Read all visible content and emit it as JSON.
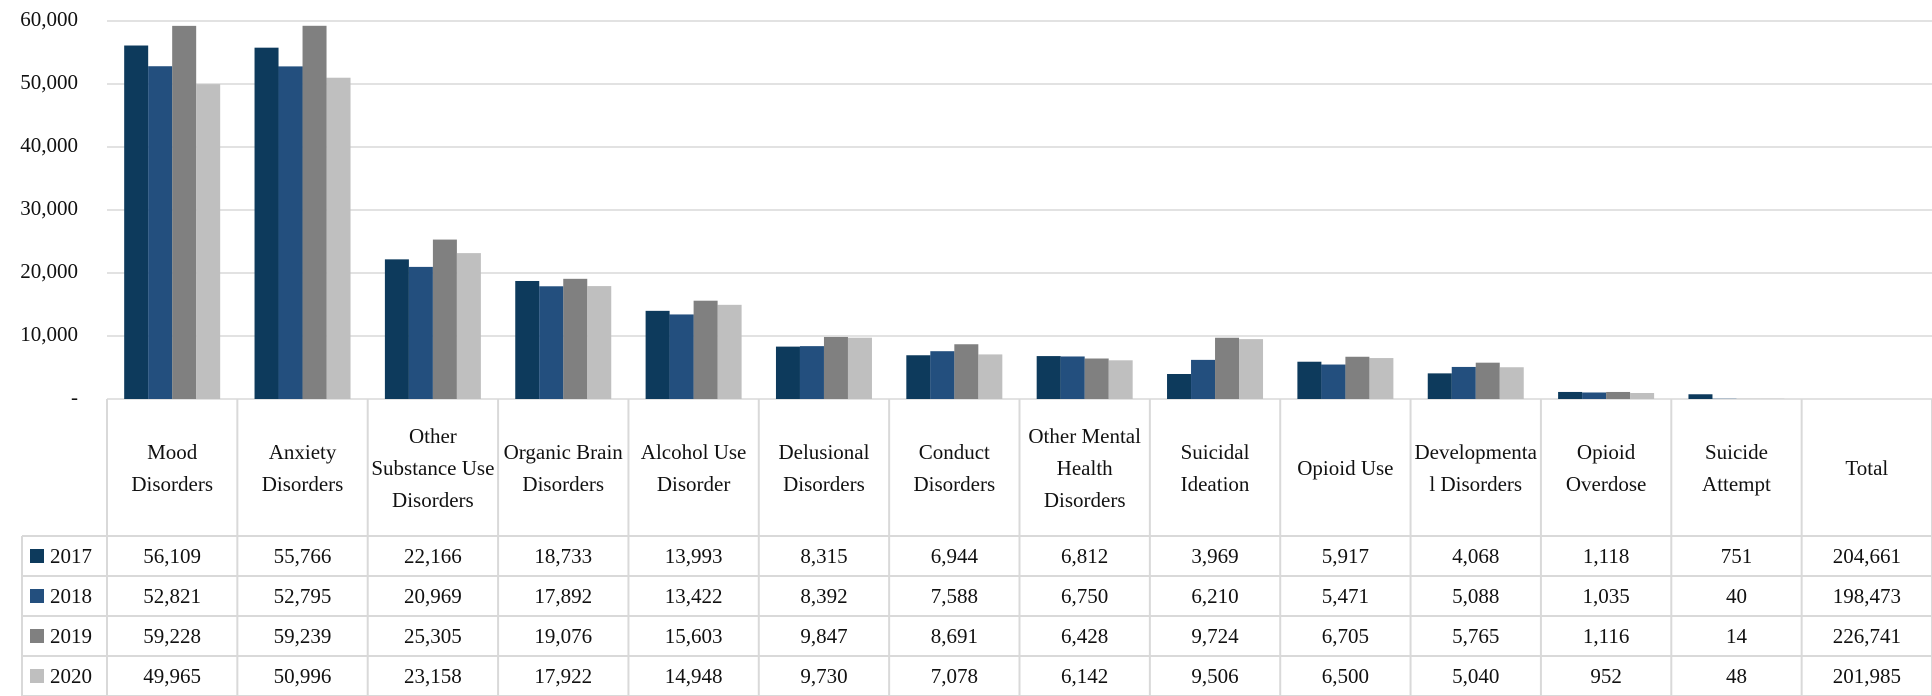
{
  "chart_data": {
    "type": "bar",
    "categories": [
      "Mood Disorders",
      "Anxiety Disorders",
      "Other Substance Use Disorders",
      "Organic Brain Disorders",
      "Alcohol Use Disorder",
      "Delusional Disorders",
      "Conduct Disorders",
      "Other Mental Health Disorders",
      "Suicidal Ideation",
      "Opioid Use",
      "Developmental Disorders",
      "Opioid Overdose",
      "Suicide Attempt",
      "Total"
    ],
    "series": [
      {
        "name": "2017",
        "color": "#0d3a5c",
        "values": [
          56109,
          55766,
          22166,
          18733,
          13993,
          8315,
          6944,
          6812,
          3969,
          5917,
          4068,
          1118,
          751,
          204661
        ],
        "value_labels": [
          "56,109",
          "55,766",
          "22,166",
          "18,733",
          "13,993",
          "8,315",
          "6,944",
          "6,812",
          "3,969",
          "5,917",
          "4,068",
          "1,118",
          "751",
          "204,661"
        ]
      },
      {
        "name": "2018",
        "color": "#234f7e",
        "values": [
          52821,
          52795,
          20969,
          17892,
          13422,
          8392,
          7588,
          6750,
          6210,
          5471,
          5088,
          1035,
          40,
          198473
        ],
        "value_labels": [
          "52,821",
          "52,795",
          "20,969",
          "17,892",
          "13,422",
          "8,392",
          "7,588",
          "6,750",
          "6,210",
          "5,471",
          "5,088",
          "1,035",
          "40",
          "198,473"
        ]
      },
      {
        "name": "2019",
        "color": "#808080",
        "values": [
          59228,
          59239,
          25305,
          19076,
          15603,
          9847,
          8691,
          6428,
          9724,
          6705,
          5765,
          1116,
          14,
          226741
        ],
        "value_labels": [
          "59,228",
          "59,239",
          "25,305",
          "19,076",
          "15,603",
          "9,847",
          "8,691",
          "6,428",
          "9,724",
          "6,705",
          "5,765",
          "1,116",
          "14",
          "226,741"
        ]
      },
      {
        "name": "2020",
        "color": "#bfbfbf",
        "values": [
          49965,
          50996,
          23158,
          17922,
          14948,
          9730,
          7078,
          6142,
          9506,
          6500,
          5040,
          952,
          48,
          201985
        ],
        "value_labels": [
          "49,965",
          "50,996",
          "23,158",
          "17,922",
          "14,948",
          "9,730",
          "7,078",
          "6,142",
          "9,506",
          "6,500",
          "5,040",
          "952",
          "48",
          "201,985"
        ]
      }
    ],
    "ylim": [
      0,
      60000
    ],
    "yticks": [
      {
        "value": 0,
        "label": "-"
      },
      {
        "value": 10000,
        "label": "10,000"
      },
      {
        "value": 20000,
        "label": "20,000"
      },
      {
        "value": 30000,
        "label": "30,000"
      },
      {
        "value": 40000,
        "label": "40,000"
      },
      {
        "value": 50000,
        "label": "50,000"
      },
      {
        "value": 60000,
        "label": "60,000"
      }
    ],
    "grid": true
  }
}
